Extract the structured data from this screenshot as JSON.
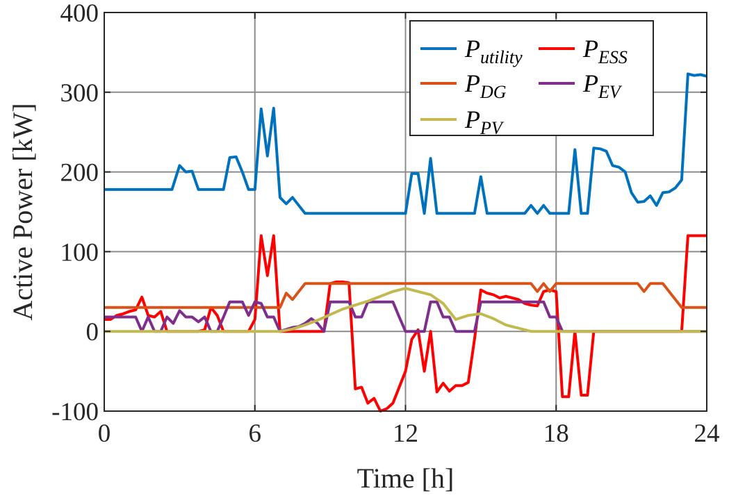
{
  "chart_data": {
    "type": "line",
    "xlabel": "Time [h]",
    "ylabel": "Active Power [kW]",
    "xlim": [
      0,
      24
    ],
    "ylim": [
      -100,
      400
    ],
    "xticks": [
      0,
      6,
      12,
      18,
      24
    ],
    "yticks": [
      -100,
      0,
      100,
      200,
      300,
      400
    ],
    "grid": "x and y at major ticks",
    "legend_position": "top-right",
    "series": [
      {
        "name": "P_utility",
        "label_main": "P",
        "label_sub": "utility",
        "color": "#0072BD",
        "points": [
          [
            0,
            178
          ],
          [
            2.7,
            178
          ],
          [
            3.0,
            208
          ],
          [
            3.25,
            200
          ],
          [
            3.5,
            201
          ],
          [
            3.75,
            178
          ],
          [
            4.75,
            178
          ],
          [
            5.0,
            218
          ],
          [
            5.25,
            219
          ],
          [
            5.5,
            200
          ],
          [
            5.75,
            178
          ],
          [
            6.0,
            178
          ],
          [
            6.25,
            279
          ],
          [
            6.5,
            220
          ],
          [
            6.75,
            280
          ],
          [
            7.0,
            168
          ],
          [
            7.25,
            160
          ],
          [
            7.5,
            168
          ],
          [
            8.0,
            148
          ],
          [
            11.75,
            148
          ],
          [
            12.0,
            148
          ],
          [
            12.25,
            198
          ],
          [
            12.5,
            198
          ],
          [
            12.75,
            148
          ],
          [
            13.0,
            217
          ],
          [
            13.25,
            148
          ],
          [
            14.75,
            148
          ],
          [
            15.0,
            194
          ],
          [
            15.25,
            148
          ],
          [
            16.75,
            148
          ],
          [
            17.0,
            158
          ],
          [
            17.25,
            148
          ],
          [
            17.5,
            158
          ],
          [
            17.75,
            148
          ],
          [
            18.5,
            148
          ],
          [
            18.75,
            228
          ],
          [
            19.0,
            148
          ],
          [
            19.25,
            148
          ],
          [
            19.5,
            230
          ],
          [
            19.75,
            229
          ],
          [
            20.0,
            226
          ],
          [
            20.25,
            208
          ],
          [
            20.5,
            206
          ],
          [
            20.75,
            200
          ],
          [
            21.0,
            174
          ],
          [
            21.25,
            162
          ],
          [
            21.5,
            163
          ],
          [
            21.75,
            170
          ],
          [
            22.0,
            158
          ],
          [
            22.25,
            174
          ],
          [
            22.5,
            175
          ],
          [
            22.75,
            180
          ],
          [
            23.0,
            190
          ],
          [
            23.25,
            323
          ],
          [
            23.5,
            321
          ],
          [
            23.75,
            322
          ],
          [
            24.0,
            320
          ]
        ]
      },
      {
        "name": "P_ESS",
        "label_main": "P",
        "label_sub": "ESS",
        "color": "#FF0000",
        "points": [
          [
            0,
            15
          ],
          [
            0.25,
            15
          ],
          [
            0.5,
            20
          ],
          [
            0.75,
            22
          ],
          [
            1.0,
            25
          ],
          [
            1.25,
            27
          ],
          [
            1.5,
            43
          ],
          [
            1.75,
            20
          ],
          [
            2.0,
            18
          ],
          [
            2.25,
            25
          ],
          [
            2.5,
            0
          ],
          [
            3.75,
            0
          ],
          [
            4.0,
            2
          ],
          [
            4.25,
            30
          ],
          [
            4.5,
            20
          ],
          [
            4.75,
            0
          ],
          [
            5.75,
            0
          ],
          [
            6.0,
            15
          ],
          [
            6.25,
            120
          ],
          [
            6.5,
            70
          ],
          [
            6.75,
            120
          ],
          [
            7.0,
            0
          ],
          [
            8.5,
            0
          ],
          [
            8.75,
            0
          ],
          [
            9.0,
            60
          ],
          [
            9.25,
            62
          ],
          [
            9.5,
            62
          ],
          [
            9.75,
            61
          ],
          [
            10.0,
            -72
          ],
          [
            10.25,
            -70
          ],
          [
            10.5,
            -90
          ],
          [
            10.75,
            -84
          ],
          [
            11.0,
            -100
          ],
          [
            11.25,
            -97
          ],
          [
            11.5,
            -90
          ],
          [
            12.0,
            -50
          ],
          [
            12.25,
            -10
          ],
          [
            12.5,
            2
          ],
          [
            12.75,
            -50
          ],
          [
            13.0,
            0
          ],
          [
            13.25,
            -76
          ],
          [
            13.5,
            -65
          ],
          [
            13.75,
            -75
          ],
          [
            14.0,
            -68
          ],
          [
            14.25,
            -68
          ],
          [
            14.5,
            -64
          ],
          [
            14.75,
            -10
          ],
          [
            15.0,
            52
          ],
          [
            15.25,
            48
          ],
          [
            15.5,
            46
          ],
          [
            15.75,
            42
          ],
          [
            16.0,
            44
          ],
          [
            16.25,
            42
          ],
          [
            16.5,
            40
          ],
          [
            16.75,
            35
          ],
          [
            17.0,
            33
          ],
          [
            17.25,
            32
          ],
          [
            17.5,
            50
          ],
          [
            17.75,
            52
          ],
          [
            18.0,
            50
          ],
          [
            18.25,
            -82
          ],
          [
            18.5,
            -82
          ],
          [
            18.75,
            0
          ],
          [
            19.0,
            -80
          ],
          [
            19.25,
            -80
          ],
          [
            19.5,
            0
          ],
          [
            22.75,
            0
          ],
          [
            23.0,
            0
          ],
          [
            23.25,
            120
          ],
          [
            24.0,
            120
          ]
        ]
      },
      {
        "name": "P_DG",
        "label_main": "P",
        "label_sub": "DG",
        "color": "#D95319",
        "points": [
          [
            0,
            30
          ],
          [
            6.75,
            30
          ],
          [
            7.0,
            30
          ],
          [
            7.25,
            48
          ],
          [
            7.5,
            40
          ],
          [
            8.0,
            60
          ],
          [
            17.0,
            60
          ],
          [
            17.25,
            50
          ],
          [
            17.5,
            60
          ],
          [
            17.75,
            50
          ],
          [
            18.0,
            60
          ],
          [
            21.25,
            60
          ],
          [
            21.5,
            50
          ],
          [
            21.75,
            60
          ],
          [
            22.25,
            60
          ],
          [
            23.0,
            30
          ],
          [
            24.0,
            30
          ]
        ]
      },
      {
        "name": "P_EV",
        "label_main": "P",
        "label_sub": "EV",
        "color": "#7E2F8E",
        "points": [
          [
            0,
            18
          ],
          [
            1.25,
            18
          ],
          [
            1.5,
            0
          ],
          [
            1.75,
            18
          ],
          [
            2.0,
            0
          ],
          [
            2.25,
            0
          ],
          [
            2.5,
            18
          ],
          [
            2.75,
            10
          ],
          [
            3.0,
            26
          ],
          [
            3.25,
            18
          ],
          [
            3.5,
            18
          ],
          [
            3.75,
            12
          ],
          [
            4.0,
            18
          ],
          [
            4.25,
            0
          ],
          [
            4.5,
            0
          ],
          [
            4.75,
            18
          ],
          [
            5.0,
            37
          ],
          [
            5.5,
            37
          ],
          [
            5.75,
            20
          ],
          [
            6.0,
            37
          ],
          [
            6.25,
            35
          ],
          [
            6.5,
            18
          ],
          [
            6.75,
            18
          ],
          [
            7.0,
            0
          ],
          [
            7.5,
            5
          ],
          [
            7.75,
            6
          ],
          [
            8.0,
            10
          ],
          [
            8.25,
            16
          ],
          [
            8.5,
            10
          ],
          [
            8.75,
            0
          ],
          [
            9.0,
            37
          ],
          [
            9.75,
            37
          ],
          [
            10.0,
            18
          ],
          [
            10.25,
            18
          ],
          [
            10.5,
            37
          ],
          [
            11.5,
            37
          ],
          [
            11.75,
            18
          ],
          [
            12.0,
            0
          ],
          [
            12.75,
            0
          ],
          [
            13.0,
            37
          ],
          [
            13.25,
            37
          ],
          [
            13.5,
            18
          ],
          [
            13.75,
            18
          ],
          [
            14.0,
            0
          ],
          [
            14.5,
            0
          ],
          [
            14.75,
            0
          ],
          [
            15.0,
            37
          ],
          [
            17.5,
            37
          ],
          [
            17.75,
            18
          ],
          [
            18.0,
            18
          ],
          [
            18.25,
            0
          ],
          [
            24.0,
            0
          ]
        ]
      },
      {
        "name": "P_PV",
        "label_main": "P",
        "label_sub": "PV",
        "color": "#C2B94F",
        "points": [
          [
            0,
            0
          ],
          [
            7.0,
            0
          ],
          [
            7.5,
            3
          ],
          [
            8.0,
            8
          ],
          [
            8.5,
            14
          ],
          [
            9.0,
            21
          ],
          [
            9.5,
            28
          ],
          [
            10.0,
            33
          ],
          [
            10.5,
            38
          ],
          [
            11.0,
            44
          ],
          [
            11.5,
            50
          ],
          [
            12.0,
            54
          ],
          [
            12.5,
            50
          ],
          [
            13.0,
            46
          ],
          [
            13.5,
            35
          ],
          [
            14.0,
            15
          ],
          [
            14.5,
            20
          ],
          [
            15.0,
            22
          ],
          [
            15.5,
            16
          ],
          [
            16.0,
            8
          ],
          [
            16.5,
            4
          ],
          [
            17.0,
            0
          ],
          [
            24.0,
            0
          ]
        ]
      }
    ],
    "legend_layout": [
      [
        "P_utility",
        "P_ESS"
      ],
      [
        "P_DG",
        "P_EV"
      ],
      [
        "P_PV"
      ]
    ]
  }
}
